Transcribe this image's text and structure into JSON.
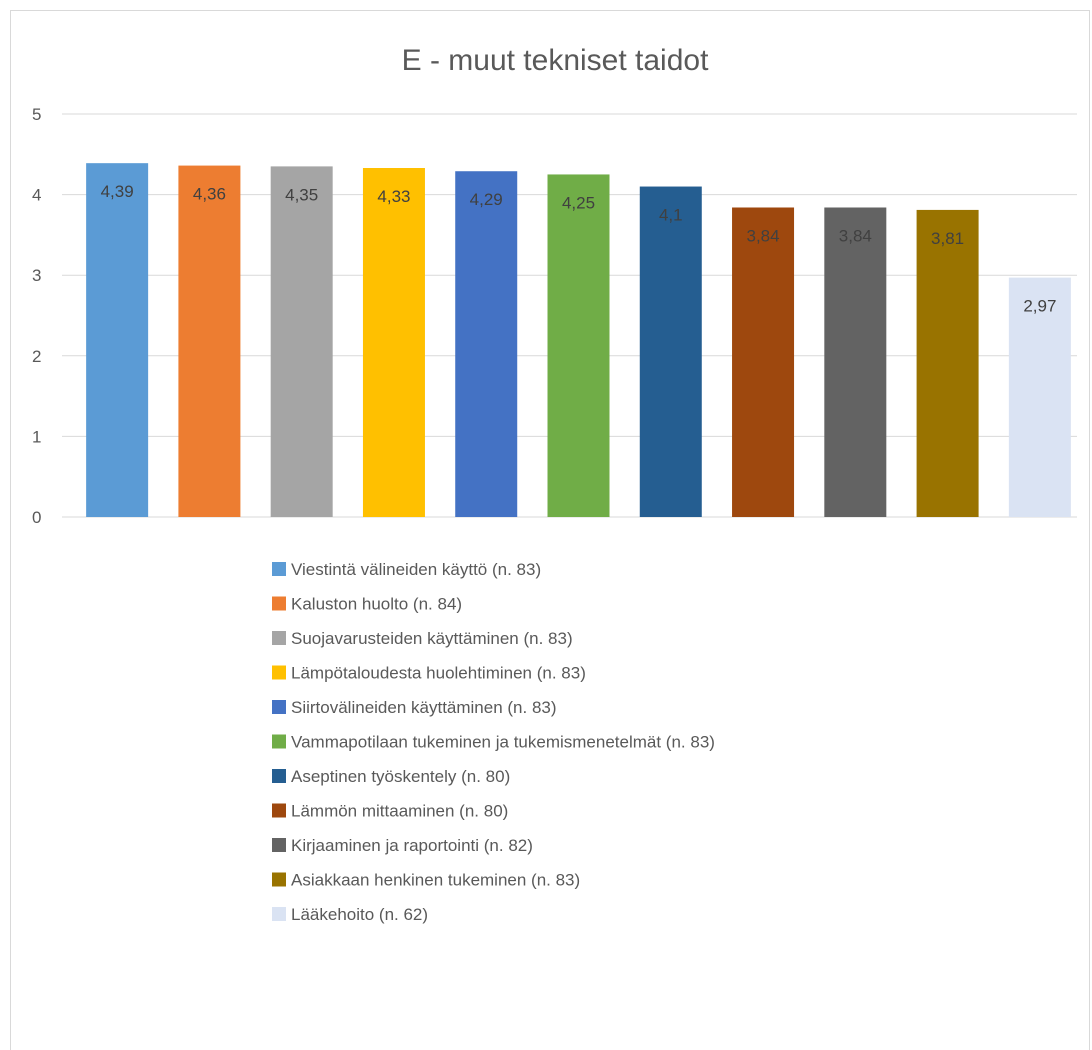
{
  "chart_data": {
    "type": "bar",
    "title": "E - muut tekniset taidot",
    "xlabel": "",
    "ylabel": "",
    "ylim": [
      0,
      5
    ],
    "yticks": [
      "0",
      "1",
      "2",
      "3",
      "4",
      "5"
    ],
    "grid": true,
    "legend_position": "bottom",
    "series": [
      {
        "name": "Viestintä välineiden käyttö (n. 83)",
        "value": 4.39,
        "label": "4,39",
        "color": "#5B9BD5"
      },
      {
        "name": "Kaluston huolto (n. 84)",
        "value": 4.36,
        "label": "4,36",
        "color": "#ED7D31"
      },
      {
        "name": "Suojavarusteiden käyttäminen (n. 83)",
        "value": 4.35,
        "label": "4,35",
        "color": "#A5A5A5"
      },
      {
        "name": "Lämpötaloudesta huolehtiminen (n. 83)",
        "value": 4.33,
        "label": "4,33",
        "color": "#FFC000"
      },
      {
        "name": "Siirtovälineiden käyttäminen (n. 83)",
        "value": 4.29,
        "label": "4,29",
        "color": "#4472C4"
      },
      {
        "name": "Vammapotilaan tukeminen ja tukemismenetelmät (n. 83)",
        "value": 4.25,
        "label": "4,25",
        "color": "#70AD47"
      },
      {
        "name": "Aseptinen työskentely (n. 80)",
        "value": 4.1,
        "label": "4,1",
        "color": "#255E91"
      },
      {
        "name": "Lämmön mittaaminen (n. 80)",
        "value": 3.84,
        "label": "3,84",
        "color": "#9E480E"
      },
      {
        "name": "Kirjaaminen ja raportointi (n. 82)",
        "value": 3.84,
        "label": "3,84",
        "color": "#636363"
      },
      {
        "name": "Asiakkaan henkinen tukeminen (n. 83)",
        "value": 3.81,
        "label": "3,81",
        "color": "#997300"
      },
      {
        "name": "Lääkehoito (n. 62)",
        "value": 2.97,
        "label": "2,97",
        "color": "#DAE3F3"
      }
    ]
  }
}
